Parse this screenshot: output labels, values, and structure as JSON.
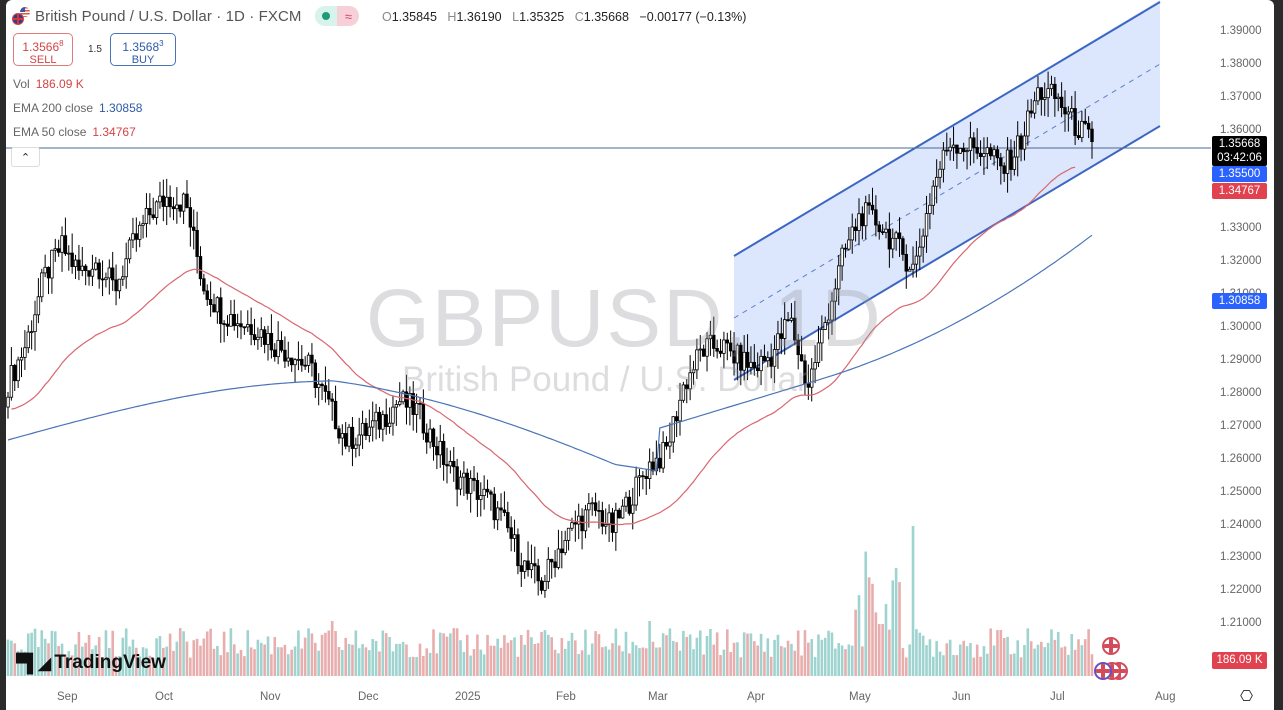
{
  "header": {
    "symbol_title": "British Pound / U.S. Dollar · 1D · FXCM",
    "status_market_open": "●",
    "status_delayed": "≈",
    "ohlc": {
      "O": "1.35845",
      "H": "1.36190",
      "L": "1.35325",
      "C": "1.35668",
      "change": "−0.00177 (−0.13%)"
    }
  },
  "trade": {
    "sell_price_main": "1.3566",
    "sell_price_sup": "8",
    "sell_label": "SELL",
    "spread": "1.5",
    "buy_price_main": "1.3568",
    "buy_price_sup": "3",
    "buy_label": "BUY"
  },
  "legend": {
    "vol_label": "Vol",
    "vol_value": "186.09 K",
    "ema200_label": "EMA 200 close",
    "ema200_value": "1.30858",
    "ema50_label": "EMA 50 close",
    "ema50_value": "1.34767"
  },
  "watermark": {
    "symbol": "GBPUSD, 1D",
    "name": "British Pound / U.S. Dollar"
  },
  "price_axis": {
    "ticks": [
      "1.39000",
      "1.38000",
      "1.37000",
      "1.36000",
      "1.35000",
      "1.34000",
      "1.33000",
      "1.32000",
      "1.31000",
      "1.30000",
      "1.29000",
      "1.28000",
      "1.27000",
      "1.26000",
      "1.25000",
      "1.24000",
      "1.23000",
      "1.22000",
      "1.21000"
    ],
    "last_price": "1.35668",
    "countdown": "03:42:06",
    "line_level": "1.35500",
    "ema50_tag": "1.34767",
    "ema200_tag": "1.30858",
    "volume_tag": "186.09 K"
  },
  "time_axis": {
    "labels": [
      {
        "text": "Sep",
        "x": 67
      },
      {
        "text": "Oct",
        "x": 165
      },
      {
        "text": "Nov",
        "x": 270
      },
      {
        "text": "Dec",
        "x": 368
      },
      {
        "text": "2025",
        "x": 465
      },
      {
        "text": "Feb",
        "x": 566
      },
      {
        "text": "Mar",
        "x": 658
      },
      {
        "text": "Apr",
        "x": 757
      },
      {
        "text": "May",
        "x": 859
      },
      {
        "text": "Jun",
        "x": 962
      },
      {
        "text": "Jul",
        "x": 1060
      },
      {
        "text": "Aug",
        "x": 1165
      }
    ]
  },
  "branding": {
    "logo_text": "TradingView"
  },
  "colors": {
    "up_volume": "#9fd3cf",
    "down_volume": "#e8aeae",
    "ema50": "#d9666f",
    "ema200": "#4a74b8",
    "channel_line": "#3c66c4",
    "channel_fill": "#d6e2fb",
    "price_line": "#4a6a94",
    "last_price_bg": "#000000",
    "level_bg": "#2962ff",
    "ema50_bg": "#e0424f",
    "ema200_bg": "#2962ff"
  },
  "chart_data": {
    "type": "candlestick",
    "title": "British Pound / U.S. Dollar · 1D · FXCM",
    "ylim": [
      1.203,
      1.397
    ],
    "y_ticks": [
      1.21,
      1.22,
      1.23,
      1.24,
      1.25,
      1.26,
      1.27,
      1.28,
      1.29,
      1.3,
      1.31,
      1.32,
      1.33,
      1.34,
      1.35,
      1.36,
      1.37,
      1.38,
      1.39
    ],
    "x_months": [
      "Sep",
      "Oct",
      "Nov",
      "Dec",
      "2025",
      "Feb",
      "Mar",
      "Apr",
      "May",
      "Jun",
      "Jul",
      "Aug"
    ],
    "last_ohlc": {
      "open": 1.35845,
      "high": 1.3619,
      "low": 1.35325,
      "close": 1.35668
    },
    "indicators": {
      "ema200": 1.30858,
      "ema50": 1.34767,
      "horizontal_level": 1.355,
      "volume_last": "186.09K"
    },
    "closes_weekly_approx": [
      1.283,
      1.295,
      1.315,
      1.325,
      1.317,
      1.32,
      1.312,
      1.325,
      1.335,
      1.34,
      1.338,
      1.313,
      1.305,
      1.302,
      1.3,
      1.295,
      1.292,
      1.288,
      1.277,
      1.266,
      1.268,
      1.272,
      1.278,
      1.275,
      1.265,
      1.256,
      1.252,
      1.248,
      1.24,
      1.228,
      1.222,
      1.233,
      1.241,
      1.245,
      1.239,
      1.248,
      1.258,
      1.262,
      1.282,
      1.293,
      1.295,
      1.291,
      1.288,
      1.292,
      1.303,
      1.282,
      1.302,
      1.322,
      1.335,
      1.332,
      1.325,
      1.318,
      1.342,
      1.357,
      1.355,
      1.354,
      1.348,
      1.357,
      1.372,
      1.37,
      1.362,
      1.357
    ],
    "ema50_weekly_approx": [
      1.282,
      1.29,
      1.302,
      1.311,
      1.317,
      1.318,
      1.316,
      1.314,
      1.312,
      1.305,
      1.296,
      1.289,
      1.282,
      1.275,
      1.269,
      1.262,
      1.257,
      1.253,
      1.252,
      1.252,
      1.255,
      1.258,
      1.263,
      1.268,
      1.275,
      1.28,
      1.287,
      1.296,
      1.307,
      1.318,
      1.325,
      1.333,
      1.34,
      1.345,
      1.348
    ],
    "channel": {
      "upper_start": [
        1.322,
        "late Mar"
      ],
      "upper_end": [
        1.397,
        "mid Jul+"
      ],
      "lower_start": [
        1.288,
        "late Mar"
      ],
      "lower_end": [
        1.362,
        "mid Jul+"
      ],
      "type": "ascending parallel channel with dashed median"
    }
  }
}
